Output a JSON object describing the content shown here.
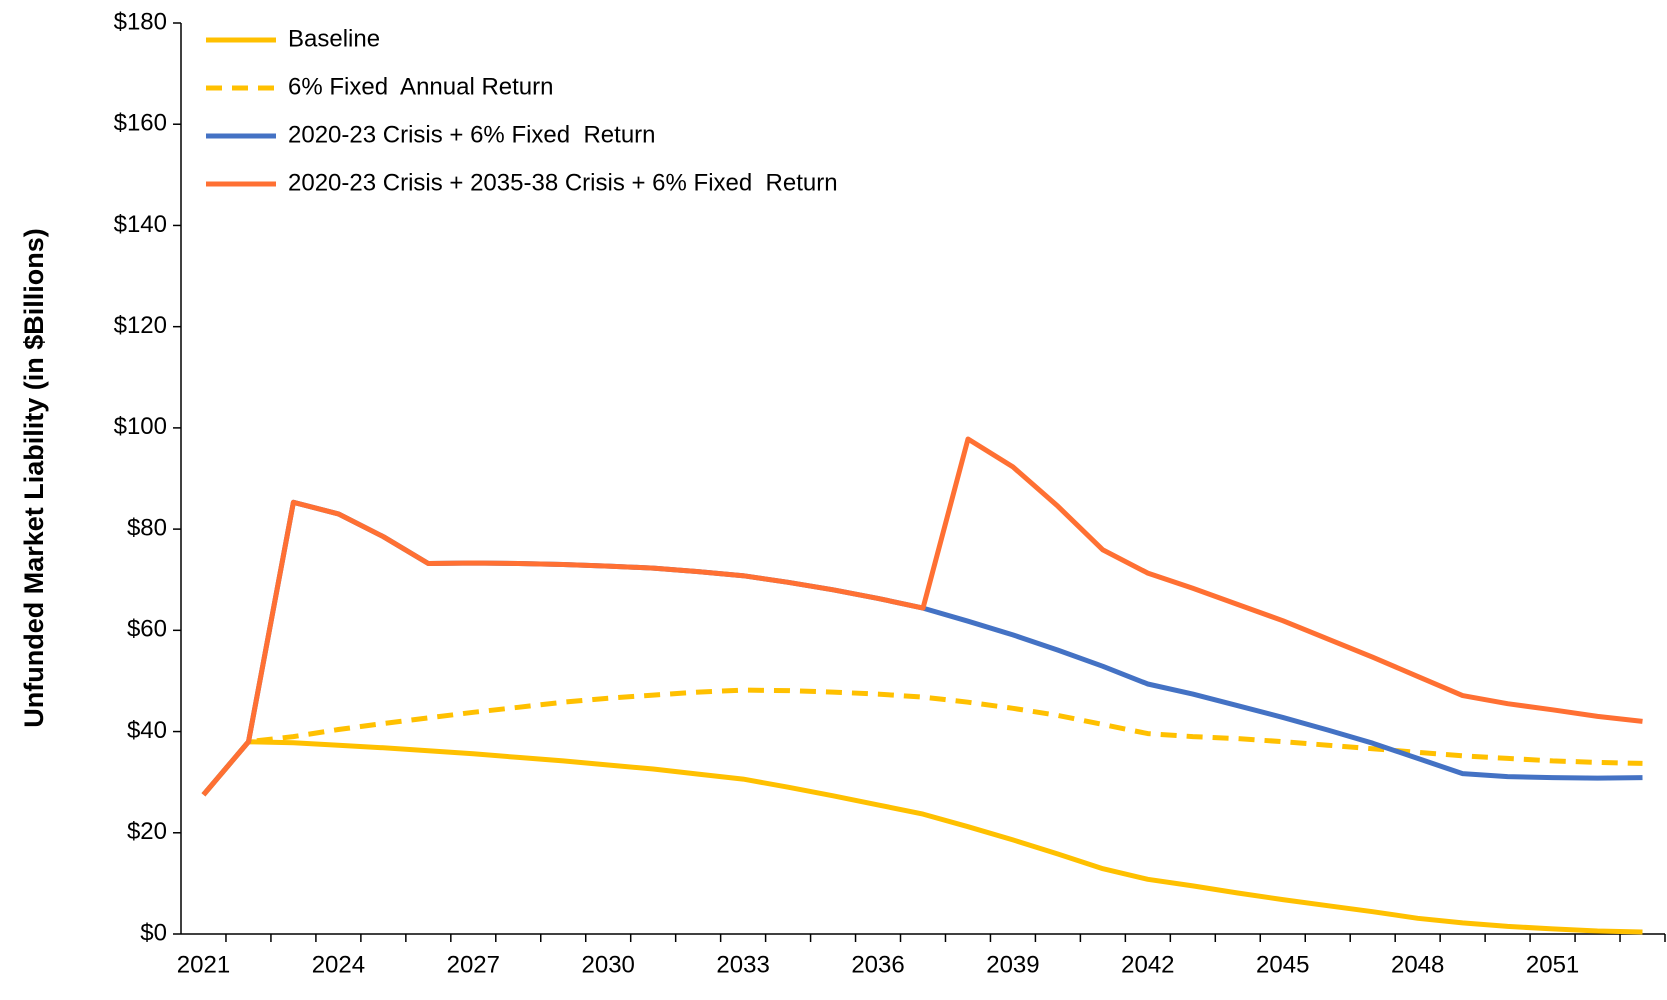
{
  "chart_data": {
    "type": "line",
    "ylabel": "Unfunded Market Liability (in $Billions)",
    "categories": [
      "2021",
      null,
      null,
      "2024",
      null,
      null,
      "2027",
      null,
      null,
      "2030",
      null,
      null,
      "2033",
      null,
      null,
      "2036",
      null,
      null,
      "2039",
      null,
      null,
      "2042",
      null,
      null,
      "2045",
      null,
      null,
      "2048",
      null,
      null,
      "2051",
      null,
      null
    ],
    "ylim": [
      0,
      180
    ],
    "yticks": [
      {
        "value": 0,
        "label": "$0"
      },
      {
        "value": 20,
        "label": "$20"
      },
      {
        "value": 40,
        "label": "$40"
      },
      {
        "value": 60,
        "label": "$60"
      },
      {
        "value": 80,
        "label": "$80"
      },
      {
        "value": 100,
        "label": "$100"
      },
      {
        "value": 120,
        "label": "$120"
      },
      {
        "value": 140,
        "label": "$140"
      },
      {
        "value": 160,
        "label": "$160"
      },
      {
        "value": 180,
        "label": "$180"
      }
    ],
    "grid": false,
    "legend": "top-left",
    "series": [
      {
        "name": "Baseline",
        "color": "#FFC000",
        "dashed": false,
        "values": [
          27.5,
          38,
          37.8,
          37.3,
          36.8,
          36.2,
          35.6,
          34.9,
          34.2,
          33.4,
          32.6,
          31.6,
          30.6,
          29,
          27.3,
          25.5,
          23.7,
          21.2,
          18.6,
          15.8,
          12.9,
          10.8,
          9.5,
          8.1,
          6.8,
          5.6,
          4.4,
          3.1,
          2.2,
          1.5,
          1,
          0.6,
          0.4
        ]
      },
      {
        "name": "6% Fixed  Annual Return",
        "color": "#FFC000",
        "dashed": true,
        "values": [
          27.5,
          38,
          39,
          40.4,
          41.6,
          42.7,
          43.8,
          44.8,
          45.8,
          46.6,
          47.2,
          47.8,
          48.2,
          48.1,
          47.8,
          47.4,
          46.8,
          45.8,
          44.6,
          43.2,
          41.4,
          39.6,
          39,
          38.6,
          38,
          37.3,
          36.6,
          35.9,
          35.2,
          34.7,
          34.2,
          33.9,
          33.7
        ]
      },
      {
        "name": "2020-23 Crisis + 6% Fixed  Return",
        "color": "#4472C4",
        "dashed": false,
        "values": [
          27.5,
          38,
          85.3,
          83,
          78.5,
          73.2,
          73.3,
          73.2,
          73,
          72.7,
          72.3,
          71.6,
          70.8,
          69.5,
          68,
          66.3,
          64.4,
          61.8,
          59.1,
          56.1,
          52.9,
          49.4,
          47.4,
          45.1,
          42.8,
          40.3,
          37.7,
          34.7,
          31.7,
          31.1,
          30.9,
          30.8,
          30.9
        ]
      },
      {
        "name": "2020-23 Crisis + 2035-38 Crisis + 6% Fixed  Return",
        "color": "#FF7033",
        "dashed": false,
        "values": [
          27.5,
          38,
          85.3,
          83,
          78.5,
          73.2,
          73.3,
          73.2,
          73,
          72.7,
          72.3,
          71.6,
          70.8,
          69.5,
          68,
          66.3,
          64.4,
          97.8,
          92.3,
          84.5,
          75.9,
          71.3,
          68.3,
          65.1,
          61.9,
          58.3,
          54.7,
          50.9,
          47.1,
          45.5,
          44.3,
          43,
          42
        ]
      }
    ]
  }
}
